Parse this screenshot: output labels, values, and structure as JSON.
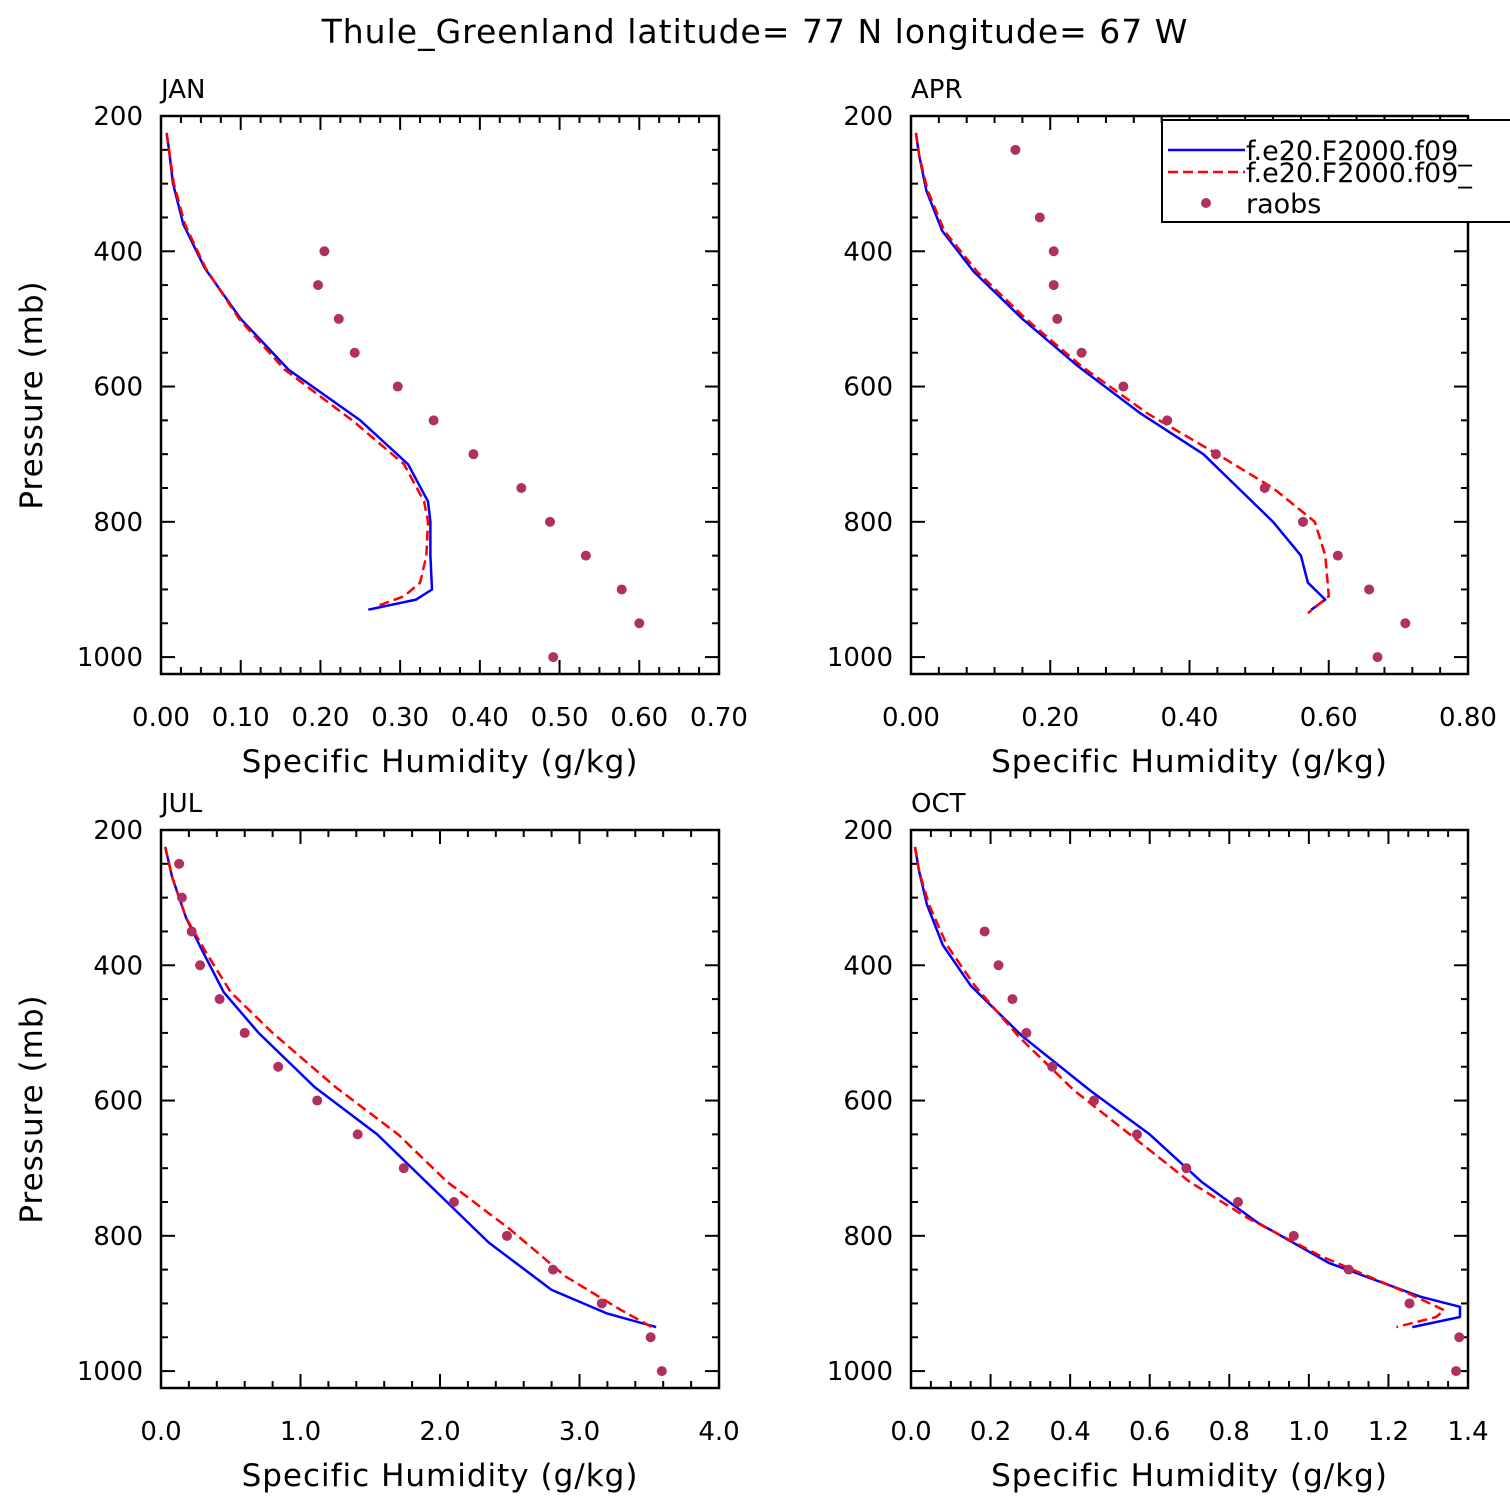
{
  "title": "Thule_Greenland  latitude= 77 N longitude= 67 W",
  "legend": {
    "placement": "top-right of APR panel",
    "entries": [
      {
        "label": "f.e20.F2000.f09_",
        "color": "#0000ff",
        "style": "solid"
      },
      {
        "label": "f.e20.F2000.f09_",
        "color": "#ff0000",
        "style": "dashed"
      },
      {
        "label": "raobs",
        "color": "#b03060",
        "style": "dot"
      }
    ]
  },
  "chart_data": [
    {
      "type": "line",
      "panel": "JAN",
      "xlabel": "Specific Humidity (g/kg)",
      "ylabel": "Pressure (mb)",
      "xlim": [
        0,
        0.7
      ],
      "xticks": [
        "0.00",
        "0.10",
        "0.20",
        "0.30",
        "0.40",
        "0.50",
        "0.60",
        "0.70"
      ],
      "ylim": [
        200,
        1025
      ],
      "yticks": [
        "200",
        "400",
        "600",
        "800",
        "1000"
      ],
      "series": [
        {
          "name": "f.e20.F2000.f09_",
          "color": "#0000ff",
          "dash": false,
          "points": [
            [
              0.007,
              225
            ],
            [
              0.01,
              250
            ],
            [
              0.015,
              300
            ],
            [
              0.028,
              360
            ],
            [
              0.055,
              425
            ],
            [
              0.1,
              500
            ],
            [
              0.16,
              575
            ],
            [
              0.25,
              650
            ],
            [
              0.31,
              715
            ],
            [
              0.335,
              770
            ],
            [
              0.338,
              800
            ],
            [
              0.338,
              850
            ],
            [
              0.34,
              900
            ],
            [
              0.32,
              915
            ],
            [
              0.26,
              930
            ]
          ]
        },
        {
          "name": "f.e20.F2000.f09_",
          "color": "#ff0000",
          "dash": true,
          "points": [
            [
              0.007,
              225
            ],
            [
              0.01,
              250
            ],
            [
              0.016,
              300
            ],
            [
              0.03,
              360
            ],
            [
              0.056,
              425
            ],
            [
              0.098,
              500
            ],
            [
              0.155,
              575
            ],
            [
              0.24,
              650
            ],
            [
              0.305,
              715
            ],
            [
              0.33,
              770
            ],
            [
              0.335,
              800
            ],
            [
              0.333,
              850
            ],
            [
              0.325,
              890
            ],
            [
              0.305,
              910
            ],
            [
              0.27,
              925
            ]
          ]
        },
        {
          "name": "raobs",
          "color": "#b03060",
          "scatter": true,
          "points": [
            [
              0.205,
              400
            ],
            [
              0.197,
              450
            ],
            [
              0.223,
              500
            ],
            [
              0.243,
              550
            ],
            [
              0.297,
              600
            ],
            [
              0.342,
              650
            ],
            [
              0.392,
              700
            ],
            [
              0.452,
              750
            ],
            [
              0.488,
              800
            ],
            [
              0.533,
              850
            ],
            [
              0.578,
              900
            ],
            [
              0.6,
              950
            ],
            [
              0.492,
              1000
            ]
          ]
        }
      ]
    },
    {
      "type": "line",
      "panel": "APR",
      "xlabel": "Specific Humidity (g/kg)",
      "ylabel": "",
      "xlim": [
        0,
        0.8
      ],
      "xticks": [
        "0.00",
        "0.20",
        "0.40",
        "0.60",
        "0.80"
      ],
      "ylim": [
        200,
        1025
      ],
      "yticks": [
        "200",
        "400",
        "600",
        "800",
        "1000"
      ],
      "series": [
        {
          "name": "f.e20.F2000.f09_",
          "color": "#0000ff",
          "dash": false,
          "points": [
            [
              0.007,
              225
            ],
            [
              0.012,
              260
            ],
            [
              0.022,
              310
            ],
            [
              0.045,
              370
            ],
            [
              0.09,
              430
            ],
            [
              0.16,
              500
            ],
            [
              0.24,
              570
            ],
            [
              0.33,
              640
            ],
            [
              0.42,
              700
            ],
            [
              0.47,
              750
            ],
            [
              0.52,
              800
            ],
            [
              0.56,
              850
            ],
            [
              0.57,
              890
            ],
            [
              0.595,
              915
            ],
            [
              0.575,
              930
            ]
          ]
        },
        {
          "name": "f.e20.F2000.f09_",
          "color": "#ff0000",
          "dash": true,
          "points": [
            [
              0.007,
              225
            ],
            [
              0.012,
              260
            ],
            [
              0.024,
              310
            ],
            [
              0.048,
              370
            ],
            [
              0.095,
              430
            ],
            [
              0.165,
              500
            ],
            [
              0.245,
              570
            ],
            [
              0.34,
              640
            ],
            [
              0.44,
              700
            ],
            [
              0.52,
              750
            ],
            [
              0.58,
              800
            ],
            [
              0.595,
              850
            ],
            [
              0.6,
              910
            ],
            [
              0.57,
              935
            ]
          ]
        },
        {
          "name": "raobs",
          "color": "#b03060",
          "scatter": true,
          "points": [
            [
              0.15,
              250
            ],
            [
              0.185,
              350
            ],
            [
              0.205,
              400
            ],
            [
              0.205,
              450
            ],
            [
              0.21,
              500
            ],
            [
              0.245,
              550
            ],
            [
              0.305,
              600
            ],
            [
              0.368,
              650
            ],
            [
              0.438,
              700
            ],
            [
              0.508,
              750
            ],
            [
              0.563,
              800
            ],
            [
              0.613,
              850
            ],
            [
              0.658,
              900
            ],
            [
              0.71,
              950
            ],
            [
              0.67,
              1000
            ]
          ]
        }
      ]
    },
    {
      "type": "line",
      "panel": "JUL",
      "xlabel": "Specific Humidity (g/kg)",
      "ylabel": "Pressure (mb)",
      "xlim": [
        0,
        4.0
      ],
      "xticks": [
        "0.0",
        "1.0",
        "2.0",
        "3.0",
        "4.0"
      ],
      "ylim": [
        200,
        1025
      ],
      "yticks": [
        "200",
        "400",
        "600",
        "800",
        "1000"
      ],
      "series": [
        {
          "name": "f.e20.F2000.f09_",
          "color": "#0000ff",
          "dash": false,
          "points": [
            [
              0.03,
              225
            ],
            [
              0.08,
              270
            ],
            [
              0.18,
              330
            ],
            [
              0.3,
              380
            ],
            [
              0.45,
              440
            ],
            [
              0.7,
              500
            ],
            [
              1.1,
              580
            ],
            [
              1.55,
              650
            ],
            [
              1.95,
              730
            ],
            [
              2.35,
              810
            ],
            [
              2.8,
              880
            ],
            [
              3.2,
              915
            ],
            [
              3.55,
              935
            ]
          ]
        },
        {
          "name": "f.e20.F2000.f09_",
          "color": "#ff0000",
          "dash": true,
          "points": [
            [
              0.03,
              225
            ],
            [
              0.08,
              270
            ],
            [
              0.18,
              330
            ],
            [
              0.32,
              380
            ],
            [
              0.5,
              440
            ],
            [
              0.8,
              500
            ],
            [
              1.25,
              580
            ],
            [
              1.7,
              650
            ],
            [
              2.05,
              720
            ],
            [
              2.5,
              790
            ],
            [
              2.9,
              860
            ],
            [
              3.3,
              910
            ],
            [
              3.52,
              935
            ]
          ]
        },
        {
          "name": "raobs",
          "color": "#b03060",
          "scatter": true,
          "points": [
            [
              0.13,
              250
            ],
            [
              0.15,
              300
            ],
            [
              0.22,
              350
            ],
            [
              0.28,
              400
            ],
            [
              0.42,
              450
            ],
            [
              0.6,
              500
            ],
            [
              0.84,
              550
            ],
            [
              1.12,
              600
            ],
            [
              1.41,
              650
            ],
            [
              1.74,
              700
            ],
            [
              2.1,
              750
            ],
            [
              2.48,
              800
            ],
            [
              2.81,
              850
            ],
            [
              3.16,
              900
            ],
            [
              3.51,
              950
            ],
            [
              3.59,
              1000
            ]
          ]
        }
      ]
    },
    {
      "type": "line",
      "panel": "OCT",
      "xlabel": "Specific Humidity (g/kg)",
      "ylabel": "",
      "xlim": [
        0,
        1.4
      ],
      "xticks": [
        "0.0",
        "0.2",
        "0.4",
        "0.6",
        "0.8",
        "1.0",
        "1.2",
        "1.4"
      ],
      "ylim": [
        200,
        1025
      ],
      "yticks": [
        "200",
        "400",
        "600",
        "800",
        "1000"
      ],
      "series": [
        {
          "name": "f.e20.F2000.f09_",
          "color": "#0000ff",
          "dash": false,
          "points": [
            [
              0.01,
              225
            ],
            [
              0.02,
              260
            ],
            [
              0.04,
              310
            ],
            [
              0.08,
              370
            ],
            [
              0.15,
              430
            ],
            [
              0.28,
              505
            ],
            [
              0.45,
              585
            ],
            [
              0.6,
              650
            ],
            [
              0.73,
              720
            ],
            [
              0.87,
              780
            ],
            [
              1.05,
              840
            ],
            [
              1.28,
              890
            ],
            [
              1.38,
              905
            ],
            [
              1.38,
              920
            ],
            [
              1.26,
              935
            ]
          ]
        },
        {
          "name": "f.e20.F2000.f09_",
          "color": "#ff0000",
          "dash": true,
          "points": [
            [
              0.01,
              225
            ],
            [
              0.02,
              260
            ],
            [
              0.045,
              310
            ],
            [
              0.09,
              370
            ],
            [
              0.16,
              430
            ],
            [
              0.27,
              505
            ],
            [
              0.41,
              585
            ],
            [
              0.55,
              650
            ],
            [
              0.7,
              720
            ],
            [
              0.85,
              775
            ],
            [
              1.03,
              830
            ],
            [
              1.25,
              885
            ],
            [
              1.34,
              910
            ],
            [
              1.32,
              920
            ],
            [
              1.22,
              935
            ]
          ]
        },
        {
          "name": "raobs",
          "color": "#b03060",
          "scatter": true,
          "points": [
            [
              0.185,
              350
            ],
            [
              0.22,
              400
            ],
            [
              0.255,
              450
            ],
            [
              0.29,
              500
            ],
            [
              0.355,
              550
            ],
            [
              0.46,
              600
            ],
            [
              0.568,
              650
            ],
            [
              0.692,
              700
            ],
            [
              0.822,
              750
            ],
            [
              0.962,
              800
            ],
            [
              1.1,
              850
            ],
            [
              1.253,
              900
            ],
            [
              1.378,
              950
            ],
            [
              1.37,
              1000
            ]
          ]
        }
      ]
    }
  ]
}
